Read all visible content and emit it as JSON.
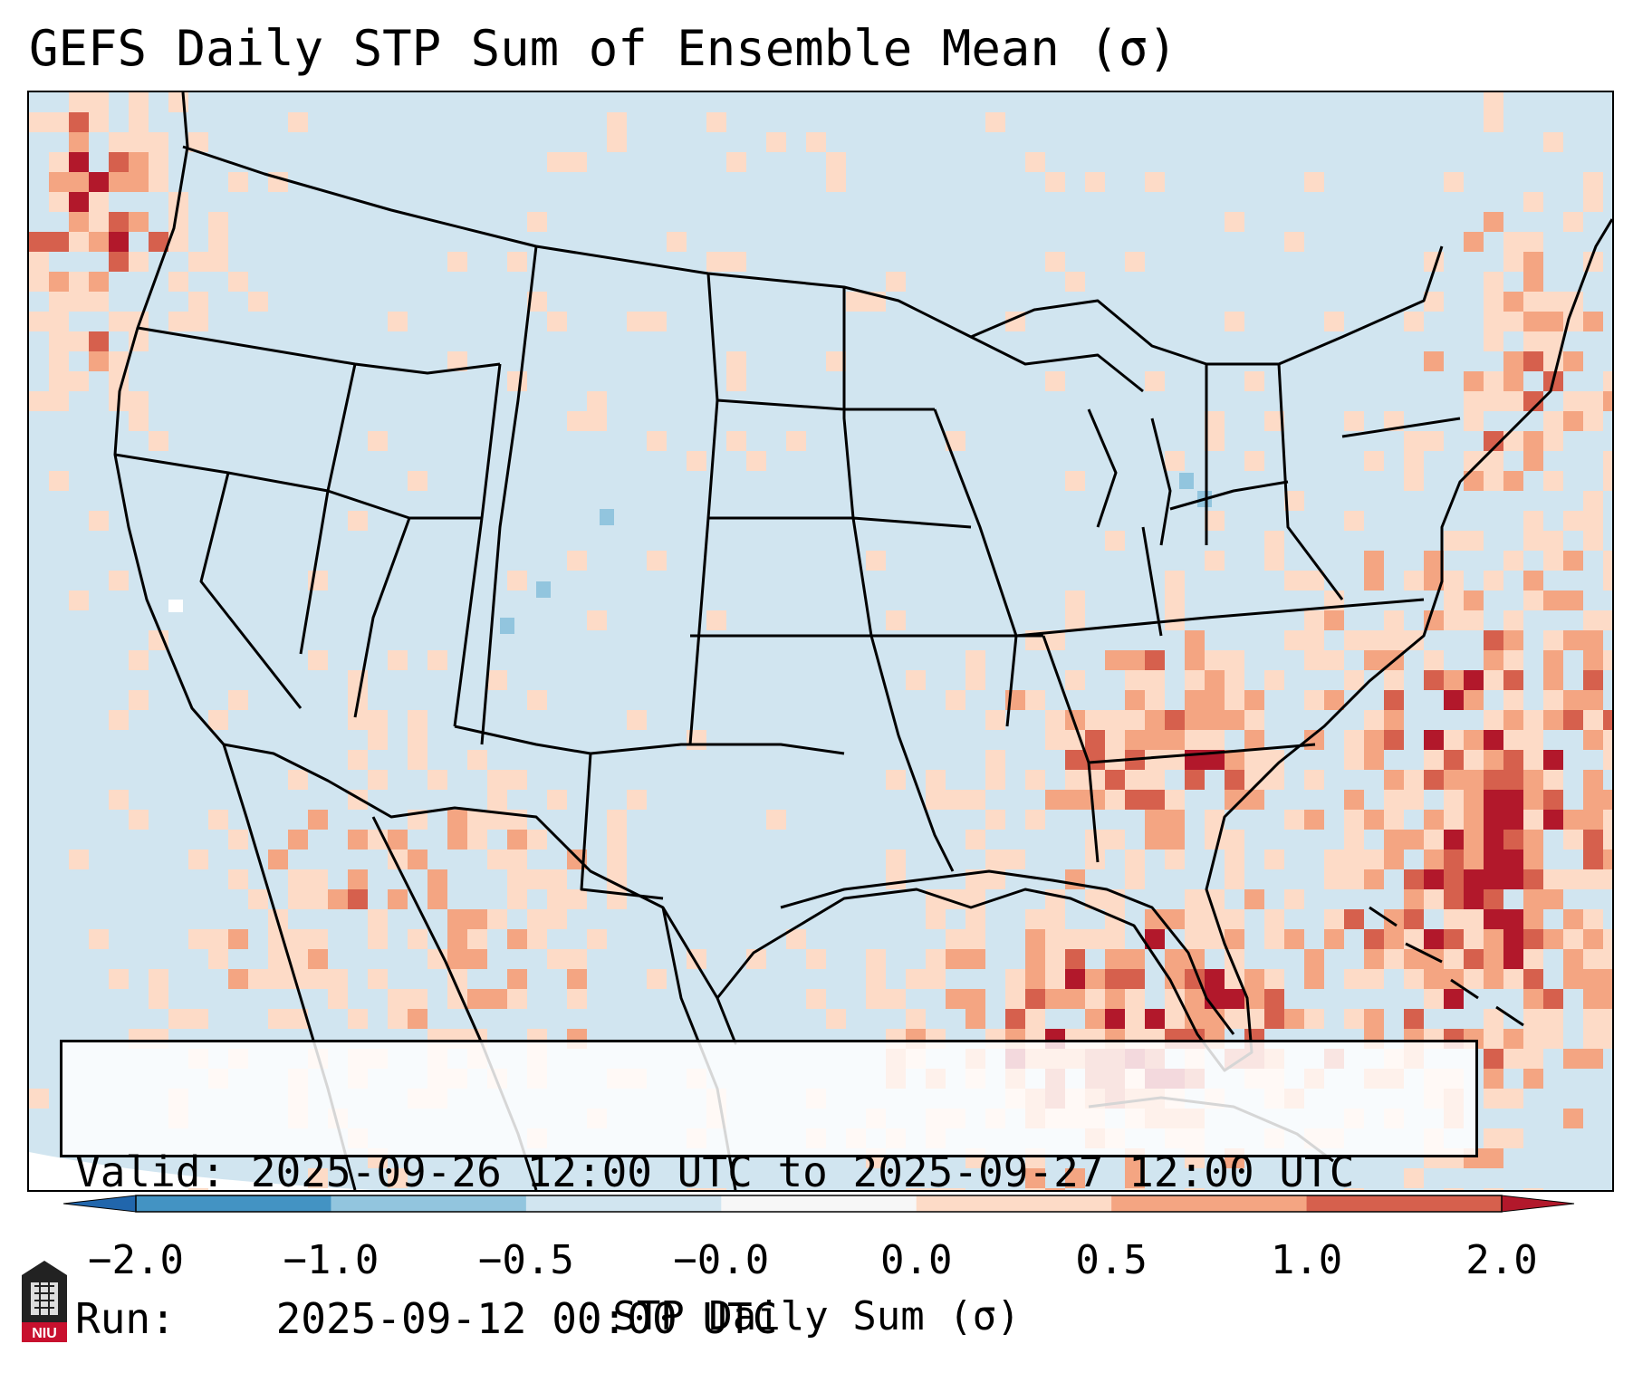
{
  "title": "GEFS Daily STP Sum of Ensemble Mean (σ)",
  "info": {
    "valid_label": "Valid:",
    "valid_value": "2025-09-26 12:00 UTC to 2025-09-27 12:00 UTC",
    "run_label": "Run:",
    "run_value": "2025-09-12 00:00 UTC"
  },
  "colorbar": {
    "label": "STP Daily Sum (σ)",
    "ticks": [
      "−2.0",
      "−1.0",
      "−0.5",
      "−0.0",
      "0.0",
      "0.5",
      "1.0",
      "2.0"
    ],
    "bins": [
      {
        "range": "−2.0 to −1.0",
        "color": "#4393c3"
      },
      {
        "range": "−1.0 to −0.5",
        "color": "#92c5de"
      },
      {
        "range": "−0.5 to −0.0",
        "color": "#d1e5f0"
      },
      {
        "range": "−0.0 to 0.0",
        "color": "#f7f7f7"
      },
      {
        "range": "0.0 to 0.5",
        "color": "#fddbc7"
      },
      {
        "range": "0.5 to 1.0",
        "color": "#f4a582"
      },
      {
        "range": "1.0 to 2.0",
        "color": "#d6604d"
      }
    ],
    "under_color": "#2166ac",
    "over_color": "#b2182b"
  },
  "map_colors": {
    "background": "#d1e5f0",
    "light_pos": "#fddbc7",
    "mid_pos": "#f4a582",
    "strong_pos": "#d6604d",
    "extreme_pos": "#b2182b",
    "neg": "#92c5de",
    "neutral": "#f7f7f7"
  },
  "logo": {
    "text": "NIU"
  }
}
